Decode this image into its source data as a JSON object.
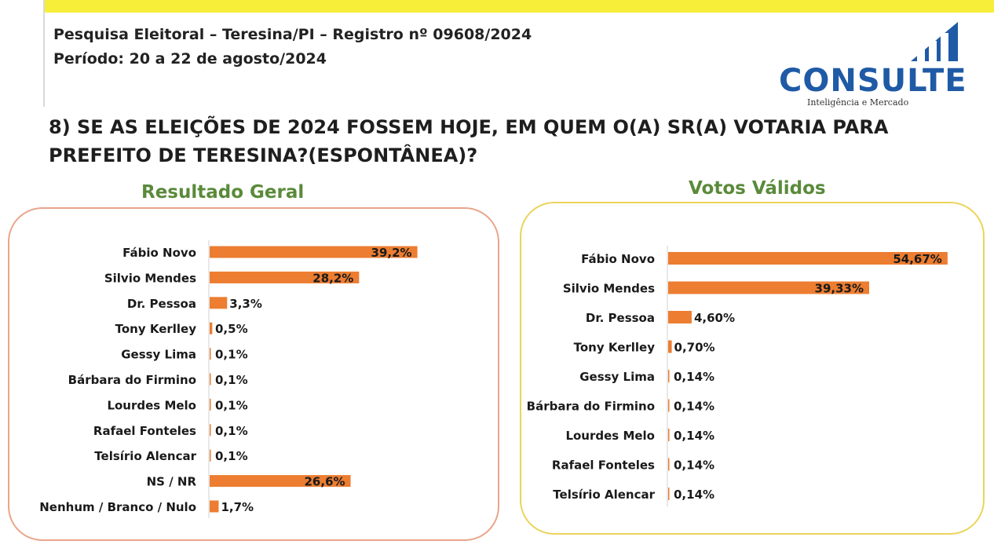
{
  "header": {
    "line1": "Pesquisa Eleitoral – Teresina/PI  – Registro nº 09608/2024",
    "line2": "Período: 20 a 22 de agosto/2024"
  },
  "logo": {
    "name": "CONSULTE",
    "tagline": "Inteligência e Mercado",
    "color": "#1f5aa6"
  },
  "question": "8) SE AS ELEIÇÕES DE 2024 FOSSEM HOJE, EM QUEM O(A) SR(A) VOTARIA PARA PREFEITO DE TERESINA?(ESPONTÂNEA)?",
  "colors": {
    "bar": "#ec7d31",
    "title_green": "#5a8a3a",
    "left_border": "#e9a58a",
    "right_border": "#ead45c"
  },
  "chart_data": [
    {
      "type": "bar",
      "orientation": "horizontal",
      "title": "Resultado Geral",
      "categories": [
        "Fábio Novo",
        "Silvio Mendes",
        "Dr. Pessoa",
        "Tony Kerlley",
        "Gessy Lima",
        "Bárbara do Firmino",
        "Lourdes Melo",
        "Rafael Fonteles",
        "Telsírio Alencar",
        "NS / NR",
        "Nenhum / Branco / Nulo"
      ],
      "values": [
        39.2,
        28.2,
        3.3,
        0.5,
        0.1,
        0.1,
        0.1,
        0.1,
        0.1,
        26.6,
        1.7
      ],
      "labels": [
        "39,2%",
        "28,2%",
        "3,3%",
        "0,5%",
        "0,1%",
        "0,1%",
        "0,1%",
        "0,1%",
        "0,1%",
        "26,6%",
        "1,7%"
      ],
      "xlim": [
        0,
        40
      ],
      "grid": false
    },
    {
      "type": "bar",
      "orientation": "horizontal",
      "title": "Votos Válidos",
      "categories": [
        "Fábio Novo",
        "Silvio Mendes",
        "Dr. Pessoa",
        "Tony Kerlley",
        "Gessy Lima",
        "Bárbara do Firmino",
        "Lourdes Melo",
        "Rafael Fonteles",
        "Telsírio Alencar"
      ],
      "values": [
        54.67,
        39.33,
        4.6,
        0.7,
        0.14,
        0.14,
        0.14,
        0.14,
        0.14
      ],
      "labels": [
        "54,67%",
        "39,33%",
        "4,60%",
        "0,70%",
        "0,14%",
        "0,14%",
        "0,14%",
        "0,14%",
        "0,14%"
      ],
      "xlim": [
        0,
        55
      ],
      "grid": false
    }
  ]
}
